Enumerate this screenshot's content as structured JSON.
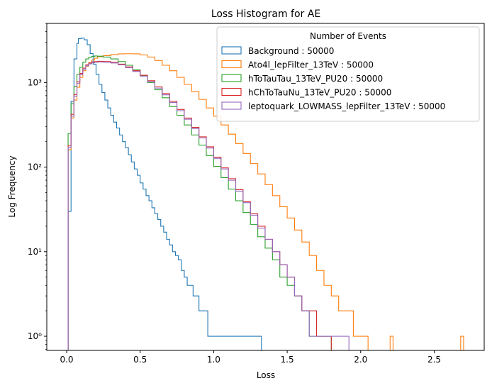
{
  "chart_data": {
    "type": "histogram-step",
    "title": "Loss Histogram for AE",
    "xlabel": "Loss",
    "ylabel": "Log Frequency",
    "xlim": [
      -0.135,
      2.84
    ],
    "ylim": [
      0.68,
      5000
    ],
    "yscale": "log",
    "grid": false,
    "legend": {
      "title": "Number of Events",
      "placement": "top-right"
    },
    "x_ticks": [
      0.0,
      0.5,
      1.0,
      1.5,
      2.0,
      2.5
    ],
    "x_tick_labels": [
      "0.0",
      "0.5",
      "1.0",
      "1.5",
      "2.0",
      "2.5"
    ],
    "y_ticks": [
      1,
      10,
      100,
      1000
    ],
    "y_tick_labels": [
      "10⁰",
      "10¹",
      "10²",
      "10³"
    ],
    "series": [
      {
        "name": "Background : 50000",
        "color": "#1f77b4",
        "points": [
          [
            0.0,
            0.3
          ],
          [
            0.01,
            30
          ],
          [
            0.03,
            600
          ],
          [
            0.05,
            1900
          ],
          [
            0.07,
            2900
          ],
          [
            0.08,
            3300
          ],
          [
            0.1,
            3350
          ],
          [
            0.12,
            3200
          ],
          [
            0.14,
            2800
          ],
          [
            0.16,
            2200
          ],
          [
            0.18,
            1650
          ],
          [
            0.2,
            1250
          ],
          [
            0.22,
            950
          ],
          [
            0.24,
            760
          ],
          [
            0.26,
            620
          ],
          [
            0.28,
            500
          ],
          [
            0.3,
            410
          ],
          [
            0.32,
            340
          ],
          [
            0.34,
            290
          ],
          [
            0.36,
            240
          ],
          [
            0.38,
            200
          ],
          [
            0.4,
            170
          ],
          [
            0.42,
            140
          ],
          [
            0.44,
            115
          ],
          [
            0.46,
            95
          ],
          [
            0.48,
            80
          ],
          [
            0.5,
            65
          ],
          [
            0.52,
            55
          ],
          [
            0.54,
            46
          ],
          [
            0.56,
            40
          ],
          [
            0.58,
            33
          ],
          [
            0.6,
            28
          ],
          [
            0.62,
            24
          ],
          [
            0.64,
            20
          ],
          [
            0.66,
            17
          ],
          [
            0.68,
            14
          ],
          [
            0.7,
            12
          ],
          [
            0.72,
            10
          ],
          [
            0.74,
            9
          ],
          [
            0.76,
            8
          ],
          [
            0.78,
            6
          ],
          [
            0.8,
            5
          ],
          [
            0.82,
            4
          ],
          [
            0.84,
            4
          ],
          [
            0.86,
            3
          ],
          [
            0.88,
            3
          ],
          [
            0.9,
            2
          ],
          [
            0.92,
            2
          ],
          [
            0.94,
            2
          ],
          [
            0.96,
            1
          ],
          [
            0.98,
            1
          ],
          [
            1.0,
            1
          ],
          [
            1.05,
            1
          ],
          [
            1.1,
            1
          ],
          [
            1.15,
            1
          ],
          [
            1.2,
            1
          ],
          [
            1.25,
            1
          ],
          [
            1.3,
            1
          ],
          [
            1.325,
            0.3
          ]
        ]
      },
      {
        "name": "Ato4l_lepFilter_13TeV : 50000",
        "color": "#ff7f0e",
        "points": [
          [
            0.0,
            0.3
          ],
          [
            0.01,
            160
          ],
          [
            0.03,
            380
          ],
          [
            0.05,
            620
          ],
          [
            0.07,
            880
          ],
          [
            0.09,
            1150
          ],
          [
            0.11,
            1380
          ],
          [
            0.13,
            1560
          ],
          [
            0.15,
            1720
          ],
          [
            0.17,
            1840
          ],
          [
            0.19,
            1940
          ],
          [
            0.21,
            2020
          ],
          [
            0.25,
            2080
          ],
          [
            0.3,
            2140
          ],
          [
            0.35,
            2180
          ],
          [
            0.4,
            2190
          ],
          [
            0.45,
            2180
          ],
          [
            0.5,
            2120
          ],
          [
            0.55,
            2000
          ],
          [
            0.6,
            1820
          ],
          [
            0.65,
            1600
          ],
          [
            0.7,
            1380
          ],
          [
            0.75,
            1150
          ],
          [
            0.8,
            950
          ],
          [
            0.85,
            780
          ],
          [
            0.9,
            630
          ],
          [
            0.95,
            500
          ],
          [
            1.0,
            400
          ],
          [
            1.05,
            315
          ],
          [
            1.1,
            245
          ],
          [
            1.15,
            190
          ],
          [
            1.2,
            145
          ],
          [
            1.25,
            110
          ],
          [
            1.3,
            83
          ],
          [
            1.35,
            62
          ],
          [
            1.4,
            46
          ],
          [
            1.45,
            34
          ],
          [
            1.5,
            25
          ],
          [
            1.55,
            18
          ],
          [
            1.6,
            13
          ],
          [
            1.65,
            9
          ],
          [
            1.7,
            6
          ],
          [
            1.75,
            4
          ],
          [
            1.8,
            3
          ],
          [
            1.85,
            2
          ],
          [
            1.9,
            2
          ],
          [
            1.95,
            1
          ],
          [
            2.0,
            1
          ],
          [
            2.05,
            0.3
          ],
          [
            2.2,
            1
          ],
          [
            2.22,
            0.3
          ],
          [
            2.68,
            1
          ],
          [
            2.7,
            0.3
          ]
        ]
      },
      {
        "name": "hToTauTau_13TeV_PU20 : 50000",
        "color": "#2ca02c",
        "points": [
          [
            0.0,
            0.3
          ],
          [
            0.01,
            250
          ],
          [
            0.03,
            560
          ],
          [
            0.05,
            900
          ],
          [
            0.07,
            1250
          ],
          [
            0.09,
            1520
          ],
          [
            0.11,
            1740
          ],
          [
            0.13,
            1900
          ],
          [
            0.15,
            1990
          ],
          [
            0.17,
            2040
          ],
          [
            0.19,
            2060
          ],
          [
            0.21,
            2050
          ],
          [
            0.25,
            2000
          ],
          [
            0.3,
            1900
          ],
          [
            0.35,
            1770
          ],
          [
            0.4,
            1600
          ],
          [
            0.45,
            1410
          ],
          [
            0.5,
            1200
          ],
          [
            0.55,
            1000
          ],
          [
            0.6,
            820
          ],
          [
            0.65,
            660
          ],
          [
            0.7,
            520
          ],
          [
            0.75,
            410
          ],
          [
            0.8,
            315
          ],
          [
            0.85,
            240
          ],
          [
            0.9,
            182
          ],
          [
            0.95,
            137
          ],
          [
            1.0,
            102
          ],
          [
            1.05,
            75
          ],
          [
            1.1,
            55
          ],
          [
            1.15,
            40
          ],
          [
            1.2,
            29
          ],
          [
            1.25,
            21
          ],
          [
            1.3,
            15
          ],
          [
            1.35,
            11
          ],
          [
            1.4,
            8
          ],
          [
            1.45,
            5
          ],
          [
            1.5,
            4
          ],
          [
            1.55,
            3
          ],
          [
            1.6,
            2
          ],
          [
            1.65,
            1
          ],
          [
            1.7,
            1
          ],
          [
            1.75,
            1
          ],
          [
            1.8,
            0.3
          ]
        ]
      },
      {
        "name": "hChToTauNu_13TeV_PU20 : 50000",
        "color": "#d62728",
        "points": [
          [
            0.0,
            0.3
          ],
          [
            0.01,
            180
          ],
          [
            0.03,
            420
          ],
          [
            0.05,
            720
          ],
          [
            0.07,
            1020
          ],
          [
            0.09,
            1280
          ],
          [
            0.11,
            1480
          ],
          [
            0.13,
            1620
          ],
          [
            0.15,
            1700
          ],
          [
            0.17,
            1750
          ],
          [
            0.19,
            1770
          ],
          [
            0.21,
            1780
          ],
          [
            0.25,
            1770
          ],
          [
            0.3,
            1730
          ],
          [
            0.35,
            1650
          ],
          [
            0.4,
            1530
          ],
          [
            0.45,
            1380
          ],
          [
            0.5,
            1220
          ],
          [
            0.55,
            1050
          ],
          [
            0.6,
            890
          ],
          [
            0.65,
            740
          ],
          [
            0.7,
            600
          ],
          [
            0.75,
            480
          ],
          [
            0.8,
            380
          ],
          [
            0.85,
            295
          ],
          [
            0.9,
            228
          ],
          [
            0.95,
            174
          ],
          [
            1.0,
            131
          ],
          [
            1.05,
            98
          ],
          [
            1.1,
            73
          ],
          [
            1.15,
            54
          ],
          [
            1.2,
            39
          ],
          [
            1.25,
            28
          ],
          [
            1.3,
            20
          ],
          [
            1.35,
            14
          ],
          [
            1.4,
            10
          ],
          [
            1.45,
            7
          ],
          [
            1.5,
            5
          ],
          [
            1.55,
            3
          ],
          [
            1.6,
            2
          ],
          [
            1.65,
            2
          ],
          [
            1.7,
            1
          ],
          [
            1.75,
            1
          ],
          [
            1.8,
            0.3
          ]
        ]
      },
      {
        "name": "leptoquark_LOWMASS_lepFilter_13TeV : 50000",
        "color": "#9467bd",
        "points": [
          [
            0.0,
            0.3
          ],
          [
            0.01,
            170
          ],
          [
            0.03,
            400
          ],
          [
            0.05,
            690
          ],
          [
            0.07,
            980
          ],
          [
            0.09,
            1240
          ],
          [
            0.11,
            1440
          ],
          [
            0.13,
            1580
          ],
          [
            0.15,
            1660
          ],
          [
            0.17,
            1710
          ],
          [
            0.19,
            1740
          ],
          [
            0.21,
            1750
          ],
          [
            0.25,
            1740
          ],
          [
            0.3,
            1700
          ],
          [
            0.35,
            1620
          ],
          [
            0.4,
            1500
          ],
          [
            0.45,
            1350
          ],
          [
            0.5,
            1190
          ],
          [
            0.55,
            1020
          ],
          [
            0.6,
            860
          ],
          [
            0.65,
            715
          ],
          [
            0.7,
            580
          ],
          [
            0.75,
            465
          ],
          [
            0.8,
            368
          ],
          [
            0.85,
            286
          ],
          [
            0.9,
            221
          ],
          [
            0.95,
            168
          ],
          [
            1.0,
            127
          ],
          [
            1.05,
            95
          ],
          [
            1.1,
            70
          ],
          [
            1.15,
            52
          ],
          [
            1.2,
            38
          ],
          [
            1.25,
            27
          ],
          [
            1.3,
            19
          ],
          [
            1.35,
            14
          ],
          [
            1.4,
            10
          ],
          [
            1.45,
            7
          ],
          [
            1.5,
            5
          ],
          [
            1.55,
            3
          ],
          [
            1.6,
            2
          ],
          [
            1.65,
            1
          ],
          [
            1.7,
            1
          ],
          [
            1.75,
            1
          ],
          [
            1.8,
            1
          ],
          [
            1.85,
            1
          ],
          [
            1.9,
            1
          ],
          [
            1.92,
            0.3
          ]
        ]
      }
    ]
  }
}
